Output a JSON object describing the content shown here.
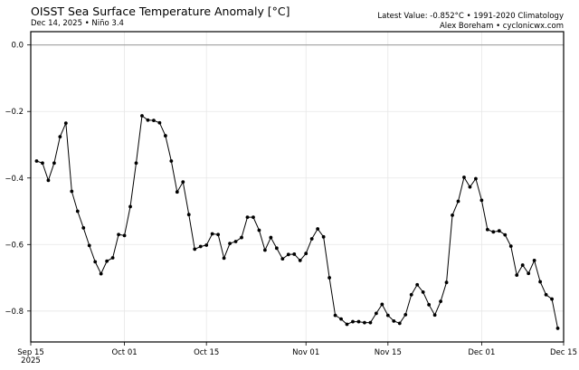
{
  "header": {
    "title": "OISST Sea Surface Temperature Anomaly [°C]",
    "subtitle": "Dec 14, 2025 • Niño 3.4",
    "right_line1": "Latest Value: -0.852°C • 1991-2020 Climatology",
    "right_line2": "Alex Boreham • cyclonicwx.com"
  },
  "chart_data": {
    "type": "line",
    "title": "OISST Sea Surface Temperature Anomaly [°C]",
    "subtitle": "Dec 14, 2025 • Niño 3.4",
    "xlabel": "",
    "ylabel": "",
    "x_start": "2025-09-16",
    "x_end": "2025-12-14",
    "x_step": "1 day",
    "xlim": [
      "2025-09-15",
      "2025-12-15"
    ],
    "ylim": [
      -0.893,
      0.04
    ],
    "xticks": [
      "Sep 15\n2025",
      "Oct 01",
      "Oct 15",
      "Nov 01",
      "Nov 15",
      "Dec 01",
      "Dec 15"
    ],
    "xtick_day_offsets": [
      0,
      16,
      30,
      47,
      61,
      77,
      91
    ],
    "yticks": [
      0.0,
      -0.2,
      -0.4,
      -0.6,
      -0.8
    ],
    "ytick_labels": [
      "0.0",
      "−0.2",
      "−0.4",
      "−0.6",
      "−0.8"
    ],
    "grid": true,
    "zero_line": true,
    "legend": null,
    "series": [
      {
        "name": "Niño 3.4 SST Anomaly",
        "color": "#000000",
        "marker": "circle",
        "values": [
          -0.349,
          -0.355,
          -0.407,
          -0.355,
          -0.276,
          -0.235,
          -0.44,
          -0.5,
          -0.55,
          -0.603,
          -0.652,
          -0.688,
          -0.65,
          -0.64,
          -0.57,
          -0.573,
          -0.486,
          -0.355,
          -0.213,
          -0.226,
          -0.227,
          -0.234,
          -0.273,
          -0.349,
          -0.442,
          -0.412,
          -0.51,
          -0.614,
          -0.606,
          -0.602,
          -0.568,
          -0.57,
          -0.641,
          -0.597,
          -0.591,
          -0.579,
          -0.518,
          -0.518,
          -0.557,
          -0.617,
          -0.579,
          -0.611,
          -0.643,
          -0.63,
          -0.629,
          -0.648,
          -0.627,
          -0.583,
          -0.553,
          -0.577,
          -0.7,
          -0.813,
          -0.824,
          -0.84,
          -0.832,
          -0.832,
          -0.835,
          -0.835,
          -0.807,
          -0.78,
          -0.813,
          -0.83,
          -0.837,
          -0.811,
          -0.751,
          -0.721,
          -0.743,
          -0.781,
          -0.812,
          -0.771,
          -0.714,
          -0.512,
          -0.47,
          -0.398,
          -0.427,
          -0.402,
          -0.467,
          -0.555,
          -0.562,
          -0.559,
          -0.571,
          -0.605,
          -0.692,
          -0.662,
          -0.687,
          -0.648,
          -0.712,
          -0.751,
          -0.764,
          -0.852
        ]
      }
    ],
    "annotations": [
      "Latest Value: -0.852°C • 1991-2020 Climatology",
      "Alex Boreham • cyclonicwx.com"
    ]
  }
}
